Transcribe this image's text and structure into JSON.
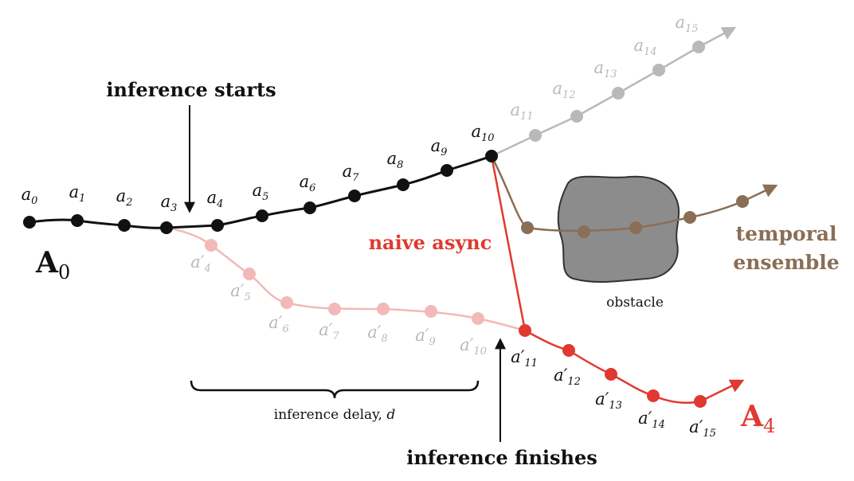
{
  "title": "",
  "colors": {
    "main": "#111111",
    "faint_gray": "#b9b9b9",
    "faint_pink": "#f3b8b8",
    "red": "#e0392f",
    "brown": "#8a6e55",
    "obstacle_fill": "#8c8c8c"
  },
  "labels": {
    "inference_starts": "inference starts",
    "inference_finishes": "inference finishes",
    "naive_async": "naive async",
    "temporal_line1": "temporal",
    "temporal_line2": "ensemble",
    "obstacle": "obstacle",
    "delay_text": "inference delay, ",
    "delay_var": "d",
    "chunk_a0_main": "A",
    "chunk_a0_sub": "0",
    "chunk_a4_main": "A",
    "chunk_a4_sub": "4"
  },
  "actions": [
    {
      "base": "a",
      "sub": "0"
    },
    {
      "base": "a",
      "sub": "1"
    },
    {
      "base": "a",
      "sub": "2"
    },
    {
      "base": "a",
      "sub": "3"
    },
    {
      "base": "a",
      "sub": "4"
    },
    {
      "base": "a",
      "sub": "5"
    },
    {
      "base": "a",
      "sub": "6"
    },
    {
      "base": "a",
      "sub": "7"
    },
    {
      "base": "a",
      "sub": "8"
    },
    {
      "base": "a",
      "sub": "9"
    },
    {
      "base": "a",
      "sub": "10"
    }
  ],
  "faded_actions": [
    {
      "base": "a",
      "sub": "11"
    },
    {
      "base": "a",
      "sub": "12"
    },
    {
      "base": "a",
      "sub": "13"
    },
    {
      "base": "a",
      "sub": "14"
    },
    {
      "base": "a",
      "sub": "15"
    }
  ],
  "primed_faded": [
    {
      "base": "a′",
      "sub": "4"
    },
    {
      "base": "a′",
      "sub": "5"
    },
    {
      "base": "a′",
      "sub": "6"
    },
    {
      "base": "a′",
      "sub": "7"
    },
    {
      "base": "a′",
      "sub": "8"
    },
    {
      "base": "a′",
      "sub": "9"
    },
    {
      "base": "a′",
      "sub": "10"
    }
  ],
  "primed_red": [
    {
      "base": "a′",
      "sub": "11"
    },
    {
      "base": "a′",
      "sub": "12"
    },
    {
      "base": "a′",
      "sub": "13"
    },
    {
      "base": "a′",
      "sub": "14"
    },
    {
      "base": "a′",
      "sub": "15"
    }
  ]
}
